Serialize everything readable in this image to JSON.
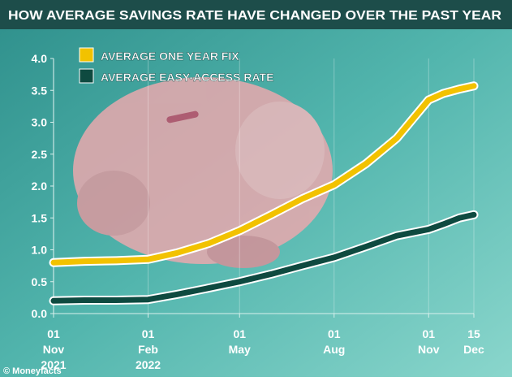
{
  "chart_data": {
    "type": "line",
    "title": "HOW AVERAGE SAVINGS RATE HAVE CHANGED OVER THE PAST YEAR",
    "source": "© Moneyfacts",
    "x": [
      "2021-11-01",
      "2021-12-01",
      "2022-01-01",
      "2022-02-01",
      "2022-03-01",
      "2022-04-01",
      "2022-05-01",
      "2022-06-01",
      "2022-07-01",
      "2022-08-01",
      "2022-09-01",
      "2022-10-01",
      "2022-11-01",
      "2022-11-15",
      "2022-12-01",
      "2022-12-15"
    ],
    "series": [
      {
        "name": "AVERAGE ONE YEAR FIX",
        "color": "#f2c200",
        "values": [
          0.8,
          0.82,
          0.83,
          0.85,
          0.95,
          1.1,
          1.3,
          1.55,
          1.8,
          2.02,
          2.35,
          2.75,
          3.35,
          3.45,
          3.52,
          3.57
        ]
      },
      {
        "name": "AVERAGE EASY-ACCESS RATE",
        "color": "#0e4a40",
        "values": [
          0.2,
          0.21,
          0.21,
          0.22,
          0.3,
          0.4,
          0.5,
          0.62,
          0.75,
          0.88,
          1.05,
          1.22,
          1.32,
          1.4,
          1.5,
          1.55
        ]
      }
    ],
    "xlim": [
      "2021-11-01",
      "2022-12-15"
    ],
    "xticks": [
      {
        "value": "2021-11-01",
        "label": "01 Nov 2021"
      },
      {
        "value": "2022-02-01",
        "label": "01 Feb 2022"
      },
      {
        "value": "2022-05-01",
        "label": "01 May"
      },
      {
        "value": "2022-08-01",
        "label": "01 Aug"
      },
      {
        "value": "2022-11-01",
        "label": "01 Nov"
      },
      {
        "value": "2022-12-15",
        "label": "15 Dec"
      }
    ],
    "ylim": [
      0,
      4
    ],
    "yticks": [
      {
        "value": 0,
        "label": "0.0"
      },
      {
        "value": 0.5,
        "label": "0.5"
      },
      {
        "value": 1,
        "label": "1.0"
      },
      {
        "value": 1.5,
        "label": "1.5"
      },
      {
        "value": 2,
        "label": "2.0"
      },
      {
        "value": 2.5,
        "label": "2.5"
      },
      {
        "value": 3,
        "label": "3.0"
      },
      {
        "value": 3.5,
        "label": "3.5"
      },
      {
        "value": 4,
        "label": "4.0"
      }
    ],
    "grid": "x",
    "legend": "top-left"
  }
}
